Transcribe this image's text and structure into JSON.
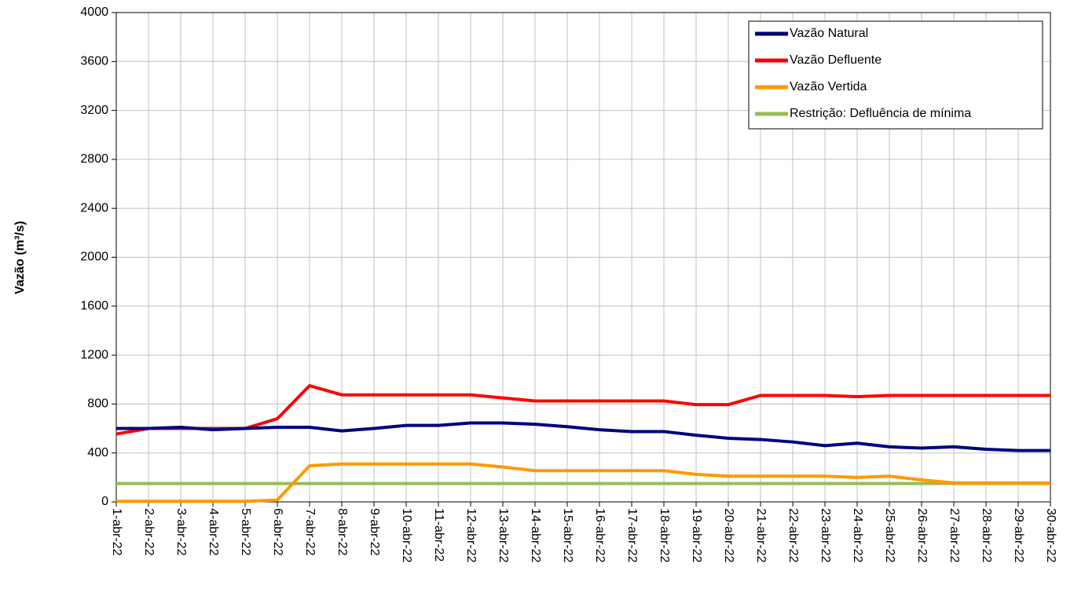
{
  "chart_data": {
    "type": "line",
    "y_label": "Vazão (m³/s)",
    "categories": [
      "1-abr-22",
      "2-abr-22",
      "3-abr-22",
      "4-abr-22",
      "5-abr-22",
      "6-abr-22",
      "7-abr-22",
      "8-abr-22",
      "9-abr-22",
      "10-abr-22",
      "11-abr-22",
      "12-abr-22",
      "13-abr-22",
      "14-abr-22",
      "15-abr-22",
      "16-abr-22",
      "17-abr-22",
      "18-abr-22",
      "19-abr-22",
      "20-abr-22",
      "21-abr-22",
      "22-abr-22",
      "23-abr-22",
      "24-abr-22",
      "25-abr-22",
      "26-abr-22",
      "27-abr-22",
      "28-abr-22",
      "29-abr-22",
      "30-abr-22"
    ],
    "series": [
      {
        "name": "Vazão Natural",
        "color": "#000080",
        "values": [
          600,
          600,
          610,
          590,
          600,
          610,
          610,
          580,
          600,
          625,
          625,
          645,
          645,
          635,
          615,
          590,
          575,
          575,
          545,
          520,
          510,
          490,
          460,
          480,
          450,
          440,
          450,
          430,
          420,
          420
        ]
      },
      {
        "name": "Vazão Defluente",
        "color": "#ff0000",
        "values": [
          555,
          600,
          600,
          600,
          600,
          680,
          950,
          875,
          875,
          875,
          875,
          875,
          850,
          825,
          825,
          825,
          825,
          825,
          795,
          795,
          870,
          870,
          870,
          860,
          870,
          870,
          870,
          870,
          870,
          870
        ]
      },
      {
        "name": "Vazão Vertida",
        "color": "#ff9900",
        "values": [
          5,
          5,
          5,
          5,
          5,
          15,
          295,
          310,
          310,
          310,
          310,
          310,
          285,
          255,
          255,
          255,
          255,
          255,
          225,
          210,
          210,
          210,
          210,
          200,
          210,
          180,
          155,
          155,
          155,
          155
        ]
      },
      {
        "name": "Restrição: Defluência de mínima",
        "color": "#99bb55",
        "values": [
          150,
          150,
          150,
          150,
          150,
          150,
          150,
          150,
          150,
          150,
          150,
          150,
          150,
          150,
          150,
          150,
          150,
          150,
          150,
          150,
          150,
          150,
          150,
          150,
          150,
          150,
          150,
          150,
          150,
          150
        ]
      }
    ],
    "ylim": [
      0,
      4000
    ],
    "yticks": [
      0,
      400,
      800,
      1200,
      1600,
      2000,
      2400,
      2800,
      3200,
      3600,
      4000
    ],
    "grid": true,
    "legend": "upper right"
  }
}
